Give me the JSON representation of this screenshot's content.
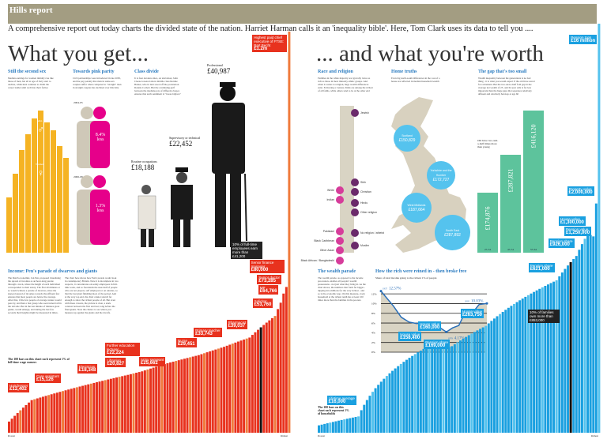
{
  "header": {
    "section": "Hills report",
    "standfirst": "A comprehensive report out today charts the divided state of the nation. Harriet Harman calls it an 'inequality bible'. Here, Tom Clark uses its data  to tell you ...."
  },
  "left": {
    "title": "What you get...",
    "second_sex": {
      "heading": "Still the second sex",
      "body": "Median earnings for women initially rise like those of men, but all at age of forty start to decline, while men continue to climb the career ladder until well into their forties",
      "men_label": "Men",
      "women_label": "Women"
    },
    "pink_parity": {
      "heading": "Towards pink parity",
      "body": "Civil partnerships were introduced in late 2005, and the pay penalty that men in same-sex couples suffer when compared to \"straight\" men in straight couples has declined over this time",
      "periods": [
        {
          "label": "2004-05",
          "gap": "8.4% less"
        },
        {
          "label": "2006-08",
          "gap": "1.3% less"
        }
      ]
    },
    "class_divide": {
      "heading": "Class divide",
      "body": "It is four decades since, on television, John Cleese towered above middle class Ronnie Barker, who in turn stood off the proletarian Ronnie Corbett. But the continuing gulf between the medians pay of different classes ensures that such sentiment is \"lower-bigface\"",
      "people": [
        {
          "name": "Professional",
          "pay": "£40,987"
        },
        {
          "name": "Supervisory or technical",
          "pay": "£22,452"
        },
        {
          "name": "Routine occupations",
          "pay": "£18,188"
        }
      ]
    },
    "parade": {
      "heading": "Income: Pen's parade of dwarves and giants",
      "body1": "The Dutch economist, Jan Pen, proposed visualising the spread of incomes as an hour-long parade through a town, where the height of each individual corresponded to their salary. The first 40 minutes or so would witness a parade of dwarves, since the skewed spread of incomes towards the affluent few ensures that most people are below the average. After that, if the few people of average stature would pass by, and then a fast group who soon turned tall in the tail side. But in the last minute of minutes great giants, would emerge, and during the last few seconds their heights might be measured in miles.",
      "body2": "The chart here shows how Pen's parade would look in contemporary Britain. Note it is incomplete in two respects, it concentrates on solely employees in full-time work, and so forestands the near-half of people who are not players, self employed or on salaries, so that the last giant finishing most of the period. And at the very top end, the chart cannot stretch far enough to show the richest people of all. But even with these caveats, the picture is clear, a stark contrast between the first and last, long before the final giants. Note the chance to see where you measure up against the giants and the dwarfs.",
      "note": "The 100 bars on this chart each represent 1% of full-time wage earners",
      "axis_left": "Poorest",
      "axis_right": "Richest",
      "annotations": [
        {
          "label": "Hairdresser",
          "value": "£12,402",
          "pct": 9
        },
        {
          "label": "Care assistant",
          "value": "£15,126",
          "pct": 20
        },
        {
          "label": "Electrician",
          "value": "£18,348",
          "pct": 33
        },
        {
          "label": "Librarian",
          "value": "£20,827",
          "pct": 43
        },
        {
          "label": "Further education lecturer",
          "value": "£22,224",
          "pct": 48
        },
        {
          "label": "Army sergeant",
          "value": "£25,662",
          "pct": 57
        },
        {
          "label": "Nurse",
          "value": "£29,451",
          "pct": 68
        },
        {
          "label": "Primary teacher",
          "value": "£33,743",
          "pct": 77
        },
        {
          "label": "Pharmacist",
          "value": "£39,037",
          "pct": 86
        },
        {
          "label": "Solicitor",
          "value": "£53,760",
          "pct": 95
        },
        {
          "label": "MP",
          "value": "£64,766",
          "pct": 97
        },
        {
          "label": "Senior doctor",
          "value": "£73,285",
          "pct": 98
        },
        {
          "label": "Senior finance manager",
          "value": "£80,000",
          "pct": 99
        },
        {
          "label": "Highest paid chief executive of FTSE: Bart Becht",
          "value": "£1.2m",
          "pct": 100
        }
      ],
      "top10": "10% of full-time employees earn more than £41,200"
    }
  },
  "right": {
    "title": "... and what you're worth",
    "race": {
      "heading": "Race and religion",
      "body": "Families in the white majority are typically twice as rich as those in most minority ethnic groups. And when it comes to religion, huge wealth differences exist. Following a Census, Sikhs are among the richest of all faiths, while others tend to be at the other end",
      "ethnic": [
        "White",
        "Indian",
        "Pakistani",
        "Black Caribbean",
        "Other Asian",
        "Black African / Bangladeshi"
      ],
      "religion": [
        "Jewish",
        "Sikh",
        "Christian",
        "Hindu",
        "Other religion",
        "No religion / atheist",
        "Muslim"
      ]
    },
    "home": {
      "heading": "Home truths",
      "body": "Even big north-south differences in the cost of a house are reflected in median household wealth",
      "regions": [
        {
          "name": "Scotland",
          "value": "£150,829"
        },
        {
          "name": "Yorkshire and the Humber",
          "value": "£172,727"
        },
        {
          "name": "West Midlands",
          "value": "£187,664"
        },
        {
          "name": "South East",
          "value": "£287,892"
        }
      ]
    },
    "gap": {
      "heading": "The gap that's too small",
      "body": "Wealth inequality between the generations is no bad thing - it is what you would expect if the old have saved for retirement. But the two-and-a-half fold gap in the average net wealth of 25- and 64 year olds is far less important than the huge gaps that separates relatively affluent and relatively hard-up at age 60",
      "annotation": "Old have two-and-a-half times more than young",
      "bars": [
        {
          "age": "25-34",
          "value": "£174,876"
        },
        {
          "age": "45-54",
          "value": "£287,821"
        },
        {
          "age": "55-64",
          "value": "£416,120"
        }
      ]
    },
    "wealth_parade": {
      "heading": "The wealth parade",
      "body": "The wealth parade, as opposed to the income procession, enables all people's wealth possessions - not just what they bring in. As the chart shows, the numbers that form far bigger - dipping into millions for the very richest - and so is the economic gap. On this measure, every household at the richest tenth has at least 100 times more than the families in the poorest.",
      "note": "The 100 bars on this chart each represent 1% of households",
      "axis_left": "Poorest",
      "axis_right": "Richest",
      "annotations": [
        {
          "label": "Lifetime average",
          "value": "£16,000",
          "pct": 15
        },
        {
          "label": "House value",
          "value": "£158,400",
          "pct": 38
        },
        {
          "label": "House value",
          "value": "£160,000",
          "pct": 45
        },
        {
          "label": "Pension share",
          "value": "£169,000",
          "pct": 48
        },
        {
          "label": "House value",
          "value": "£263,750",
          "pct": 60
        },
        {
          "label": "Pension share",
          "value": "£621,000",
          "pct": 85
        },
        {
          "label": "Pension share",
          "value": "£926,000",
          "pct": 92
        },
        {
          "label": "House value",
          "value": "£1,300,000",
          "pct": 96
        },
        {
          "label": "Pension value",
          "value": "£1,250,000",
          "pct": 98
        },
        {
          "label": "Property value",
          "value": "£2,000,000",
          "pct": 99
        },
        {
          "label": "Pension tops",
          "value": "£16 million",
          "pct": 100
        }
      ],
      "top10": "10% of families own more than £853,000"
    },
    "rich_chart": {
      "heading": "How the rich were reined in - then broke free",
      "subtitle": "Share of total income going to the richest 1% of people"
    }
  },
  "chart_data": {
    "type": "line",
    "title": "How the rich were reined in - then broke free",
    "ylabel": "Share of total income going to the richest 1% of people",
    "ylim": [
      0,
      13
    ],
    "yticks": [
      "0%",
      "2%",
      "4%",
      "6%",
      "8%",
      "10%",
      "12%"
    ],
    "x": [
      1937,
      1945,
      1950,
      1955,
      1960,
      1965,
      1970,
      1975,
      1979,
      1983,
      1987,
      1990,
      1993,
      1997,
      2000,
      2005
    ],
    "y": [
      12.57,
      9.5,
      7.2,
      6.2,
      5.9,
      6.1,
      5.6,
      5.0,
      4.17,
      5.0,
      5.5,
      7.5,
      7.8,
      8.6,
      9.8,
      10.03
    ],
    "point_labels": [
      {
        "year": "1937",
        "value": "12.57%"
      },
      {
        "year": "1979",
        "value": "4.17%"
      },
      {
        "year": "2005",
        "value": "10.03%"
      }
    ],
    "grid": true
  },
  "colors": {
    "band": "#a39d82",
    "red": "#e8321e",
    "orange": "#f5a623",
    "blue": "#1aa0e0",
    "green": "#5dc39c",
    "pink": "#e6008a",
    "purple": "#6b2a6b",
    "heading": "#2a7bc0"
  }
}
